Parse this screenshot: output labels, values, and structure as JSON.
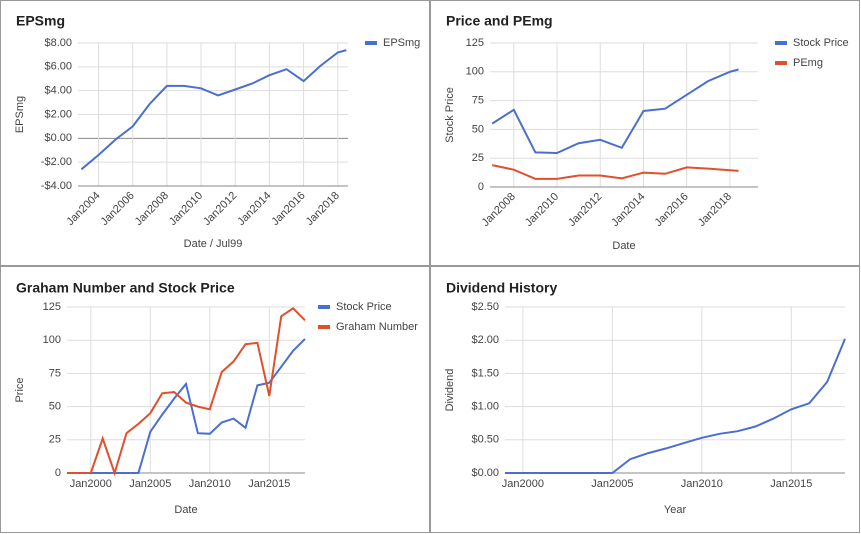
{
  "chart_data": [
    {
      "type": "line",
      "title": "EPSmg",
      "x_label": "Date / Jul99",
      "y_label": "EPSmg",
      "x": [
        2003,
        2004,
        2005,
        2006,
        2007,
        2008,
        2009,
        2010,
        2011,
        2012,
        2013,
        2014,
        2015,
        2016,
        2017,
        2018,
        2018.5
      ],
      "series": [
        {
          "name": "EPSmg",
          "color": "#4a6fd0",
          "values": [
            -2.6,
            -1.4,
            -0.1,
            1.0,
            2.9,
            4.4,
            4.4,
            4.2,
            3.6,
            4.1,
            4.6,
            5.3,
            5.8,
            4.8,
            6.1,
            7.2,
            7.4
          ]
        }
      ],
      "xlim": [
        2002.8,
        2018.6
      ],
      "ylim": [
        -4,
        8
      ],
      "xticks": [
        {
          "value": 2004,
          "label": "Jan2004"
        },
        {
          "value": 2006,
          "label": "Jan2006"
        },
        {
          "value": 2008,
          "label": "Jan2008"
        },
        {
          "value": 2010,
          "label": "Jan2010"
        },
        {
          "value": 2012,
          "label": "Jan2012"
        },
        {
          "value": 2014,
          "label": "Jan2014"
        },
        {
          "value": 2016,
          "label": "Jan2016"
        },
        {
          "value": 2018,
          "label": "Jan2018"
        }
      ],
      "yticks": [
        {
          "value": -4,
          "label": "-$4.00"
        },
        {
          "value": -2,
          "label": "-$2.00"
        },
        {
          "value": 0,
          "label": "$0.00"
        },
        {
          "value": 2,
          "label": "$2.00"
        },
        {
          "value": 4,
          "label": "$4.00"
        },
        {
          "value": 6,
          "label": "$6.00"
        },
        {
          "value": 8,
          "label": "$8.00"
        }
      ],
      "grid": true,
      "legend": "right"
    },
    {
      "type": "line",
      "title": "Price and PEmg",
      "x_label": "Date",
      "y_label": "Stock Price",
      "x": [
        2007,
        2008,
        2009,
        2010,
        2011,
        2012,
        2013,
        2014,
        2015,
        2016,
        2017,
        2018,
        2018.4
      ],
      "series": [
        {
          "name": "Stock Price",
          "color": "#4a6fd0",
          "values": [
            55,
            67,
            30,
            29.5,
            38,
            41,
            34,
            66,
            68,
            80,
            92,
            100,
            102
          ]
        },
        {
          "name": "PEmg",
          "color": "#e0502c",
          "values": [
            19,
            15,
            7,
            7,
            10,
            10,
            7.5,
            12.5,
            11.5,
            17,
            16,
            14.5,
            14
          ]
        }
      ],
      "xlim": [
        2006.9,
        2019.3
      ],
      "ylim": [
        0,
        125
      ],
      "xticks": [
        {
          "value": 2008,
          "label": "Jan2008"
        },
        {
          "value": 2010,
          "label": "Jan2010"
        },
        {
          "value": 2012,
          "label": "Jan2012"
        },
        {
          "value": 2014,
          "label": "Jan2014"
        },
        {
          "value": 2016,
          "label": "Jan2016"
        },
        {
          "value": 2018,
          "label": "Jan2018"
        }
      ],
      "yticks": [
        0,
        25,
        50,
        75,
        100,
        125
      ],
      "grid": true,
      "legend": "right"
    },
    {
      "type": "line",
      "title": "Graham Number and Stock Price",
      "x_label": "Date",
      "y_label": "Price",
      "x": [
        1998,
        1999,
        2000,
        2001,
        2002,
        2003,
        2004,
        2005,
        2006,
        2007,
        2008,
        2009,
        2010,
        2011,
        2012,
        2013,
        2014,
        2015,
        2016,
        2017,
        2018
      ],
      "series": [
        {
          "name": "Stock Price",
          "color": "#4a6fd0",
          "values": [
            0,
            0,
            0,
            0,
            0,
            0,
            0,
            31,
            44,
            56,
            67,
            30,
            29.5,
            38,
            41,
            34,
            66,
            68,
            80,
            92,
            101
          ]
        },
        {
          "name": "Graham Number",
          "color": "#e0502c",
          "values": [
            0,
            0,
            0,
            26,
            0,
            30,
            37,
            45,
            60,
            61,
            53,
            50,
            48,
            76,
            84,
            97,
            98,
            58,
            118,
            124,
            115
          ]
        }
      ],
      "xlim": [
        1998,
        2018
      ],
      "ylim": [
        0,
        125
      ],
      "xticks": [
        {
          "value": 2000,
          "label": "Jan2000"
        },
        {
          "value": 2005,
          "label": "Jan2005"
        },
        {
          "value": 2010,
          "label": "Jan2010"
        },
        {
          "value": 2015,
          "label": "Jan2015"
        }
      ],
      "yticks": [
        0,
        25,
        50,
        75,
        100,
        125
      ],
      "grid": true,
      "legend": "right"
    },
    {
      "type": "line",
      "title": "Dividend History",
      "x_label": "Year",
      "y_label": "Dividend",
      "x": [
        1999,
        2000,
        2001,
        2002,
        2003,
        2004,
        2005,
        2006,
        2007,
        2008,
        2009,
        2010,
        2011,
        2012,
        2013,
        2014,
        2015,
        2016,
        2017,
        2018
      ],
      "series": [
        {
          "color": "#4a6fd0",
          "values": [
            0,
            0,
            0,
            0,
            0,
            0,
            0,
            0.21,
            0.3,
            0.37,
            0.45,
            0.53,
            0.59,
            0.63,
            0.7,
            0.82,
            0.96,
            1.05,
            1.37,
            2.02
          ]
        }
      ],
      "xlim": [
        1999,
        2018
      ],
      "ylim": [
        0,
        2.5
      ],
      "xticks": [
        {
          "value": 2000,
          "label": "Jan2000"
        },
        {
          "value": 2005,
          "label": "Jan2005"
        },
        {
          "value": 2010,
          "label": "Jan2010"
        },
        {
          "value": 2015,
          "label": "Jan2015"
        }
      ],
      "yticks": [
        {
          "value": 0,
          "label": "$0.00"
        },
        {
          "value": 0.5,
          "label": "$0.50"
        },
        {
          "value": 1,
          "label": "$1.00"
        },
        {
          "value": 1.5,
          "label": "$1.50"
        },
        {
          "value": 2,
          "label": "$2.00"
        },
        {
          "value": 2.5,
          "label": "$2.50"
        }
      ],
      "grid": true
    }
  ]
}
